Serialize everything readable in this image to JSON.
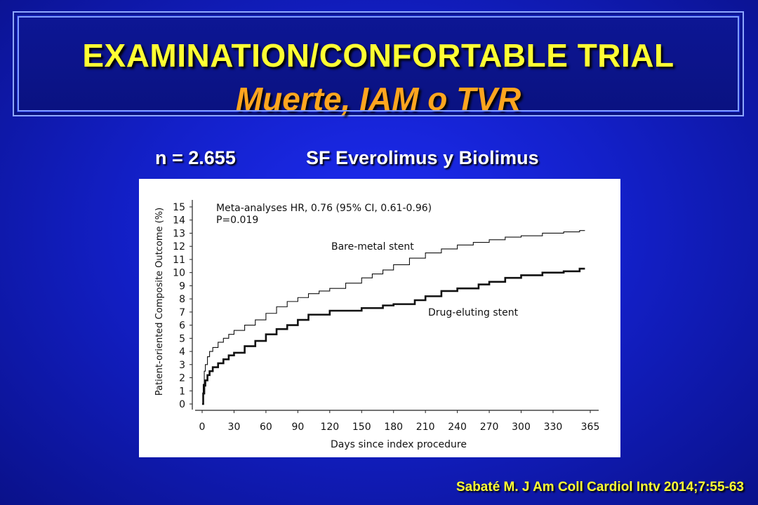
{
  "title": {
    "line1": "EXAMINATION/CONFORTABLE TRIAL",
    "line2": "Muerte, IAM o TVR"
  },
  "subtitle": {
    "n": "n = 2.655",
    "stents": "SF Everolimus y Biolimus"
  },
  "citation": "Sabaté M. J Am Coll Cardiol Intv 2014;7:55-63",
  "colors": {
    "title_yellow": "#ffff33",
    "title_orange": "#ffa51f",
    "background_blue": "#1320c9"
  },
  "chart_data": {
    "type": "line",
    "xlabel": "Days since index procedure",
    "ylabel": "Patient-oriented Composite Outcome (%)",
    "xlim": [
      0,
      365
    ],
    "ylim": [
      0,
      15
    ],
    "xticks": [
      0,
      30,
      60,
      90,
      120,
      150,
      180,
      210,
      240,
      270,
      300,
      330,
      365
    ],
    "yticks": [
      0,
      1,
      2,
      3,
      4,
      5,
      6,
      7,
      8,
      9,
      10,
      11,
      12,
      13,
      14,
      15
    ],
    "annotations": [
      "Meta-analyses HR, 0.76 (95% CI, 0.61-0.96)",
      "P=0.019"
    ],
    "grid": false,
    "series": [
      {
        "name": "Bare-metal stent",
        "x": [
          0,
          1,
          2,
          3,
          5,
          7,
          10,
          15,
          20,
          25,
          30,
          40,
          50,
          60,
          70,
          80,
          90,
          100,
          110,
          120,
          135,
          150,
          160,
          170,
          180,
          195,
          210,
          225,
          240,
          255,
          270,
          285,
          300,
          320,
          340,
          355,
          360
        ],
        "y": [
          0,
          1.5,
          2.5,
          3.0,
          3.6,
          4.0,
          4.3,
          4.7,
          5.0,
          5.3,
          5.6,
          6.0,
          6.4,
          6.9,
          7.4,
          7.8,
          8.1,
          8.4,
          8.6,
          8.8,
          9.2,
          9.6,
          9.9,
          10.2,
          10.6,
          11.1,
          11.5,
          11.8,
          12.1,
          12.3,
          12.5,
          12.7,
          12.8,
          13.0,
          13.1,
          13.2,
          13.2
        ]
      },
      {
        "name": "Drug-eluting stent",
        "x": [
          0,
          1,
          2,
          3,
          5,
          7,
          10,
          15,
          20,
          25,
          30,
          40,
          50,
          60,
          70,
          80,
          90,
          100,
          120,
          150,
          170,
          180,
          200,
          210,
          225,
          240,
          260,
          270,
          285,
          300,
          320,
          340,
          355,
          360
        ],
        "y": [
          0,
          0.8,
          1.4,
          1.8,
          2.2,
          2.5,
          2.8,
          3.1,
          3.4,
          3.7,
          3.9,
          4.4,
          4.8,
          5.3,
          5.7,
          6.0,
          6.4,
          6.8,
          7.1,
          7.3,
          7.5,
          7.6,
          7.9,
          8.2,
          8.6,
          8.8,
          9.1,
          9.3,
          9.6,
          9.8,
          10.0,
          10.1,
          10.3,
          10.3
        ]
      }
    ]
  }
}
